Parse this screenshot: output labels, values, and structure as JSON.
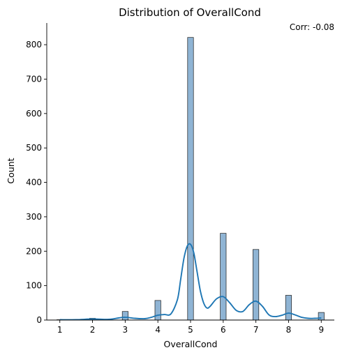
{
  "chart_data": {
    "type": "bar",
    "title": "Distribution of OverallCond",
    "xlabel": "OverallCond",
    "ylabel": "Count",
    "annotation": "Corr: -0.08",
    "xlim": [
      0.6,
      9.4
    ],
    "ylim": [
      0,
      863
    ],
    "xticks": [
      "1",
      "2",
      "3",
      "4",
      "5",
      "6",
      "7",
      "8",
      "9"
    ],
    "yticks": [
      "0",
      "100",
      "200",
      "300",
      "400",
      "500",
      "600",
      "700",
      "800"
    ],
    "bar_width": 0.18,
    "categories": [
      1,
      2,
      3,
      4,
      5,
      6,
      7,
      8,
      9
    ],
    "values": [
      1,
      5,
      25,
      57,
      821,
      252,
      205,
      72,
      22
    ],
    "kde": {
      "x": [
        1.0,
        1.5,
        2.0,
        2.5,
        2.8,
        3.0,
        3.3,
        3.6,
        3.8,
        4.0,
        4.2,
        4.4,
        4.6,
        4.7,
        4.8,
        4.9,
        5.0,
        5.1,
        5.2,
        5.3,
        5.4,
        5.5,
        5.6,
        5.8,
        6.0,
        6.2,
        6.4,
        6.6,
        6.8,
        7.0,
        7.2,
        7.4,
        7.6,
        7.8,
        8.0,
        8.2,
        8.4,
        8.6,
        8.8,
        9.0
      ],
      "y": [
        1,
        1,
        3,
        2,
        6,
        8,
        5,
        4,
        8,
        14,
        16,
        18,
        60,
        120,
        180,
        215,
        220,
        195,
        140,
        85,
        50,
        35,
        40,
        62,
        68,
        50,
        28,
        25,
        45,
        55,
        40,
        15,
        10,
        14,
        20,
        15,
        8,
        5,
        5,
        6
      ]
    },
    "color": "#1f77b4",
    "bar_fill": "#8fb4d4",
    "grid": false,
    "legend": "none"
  }
}
